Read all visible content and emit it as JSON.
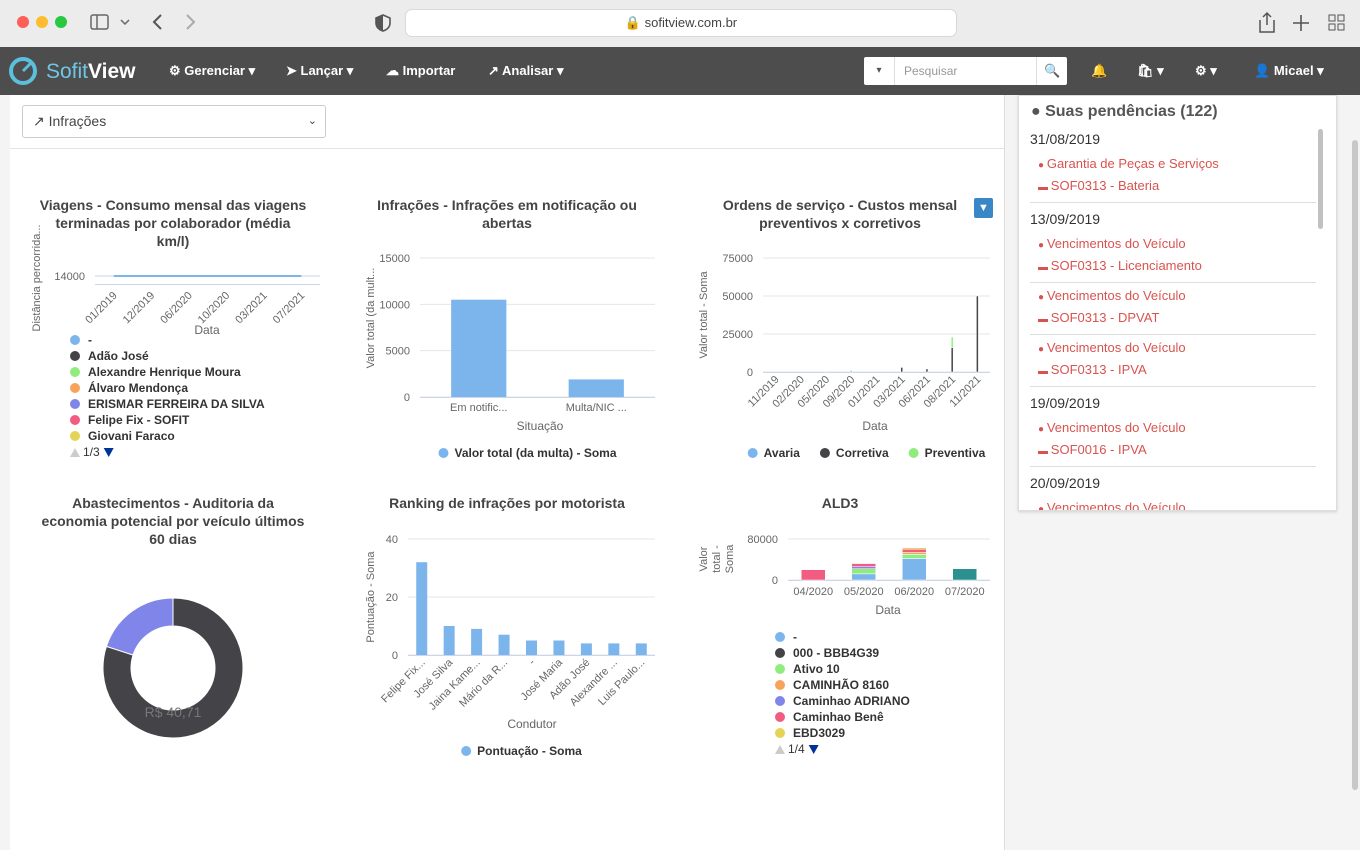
{
  "browser": {
    "url": "sofitview.com.br"
  },
  "nav": {
    "logo_a": "Sofit",
    "logo_b": "View",
    "menu": [
      "Gerenciar",
      "Lançar",
      "Importar",
      "Analisar"
    ],
    "search_placeholder": "Pesquisar",
    "user": "Micael"
  },
  "dashboard": {
    "selected": "Infrações"
  },
  "chart_data": [
    {
      "type": "line",
      "title": "Viagens - Consumo mensal das viagens terminadas por colaborador (média km/l)",
      "ylabel": "Distância percorrida...",
      "xlabel": "Data",
      "categories": [
        "01/2019",
        "12/2019",
        "06/2020",
        "10/2020",
        "03/2021",
        "07/2021"
      ],
      "ylim": [
        13000,
        15000
      ],
      "yticks": [
        14000
      ],
      "grid": true,
      "series": [
        {
          "name": "-",
          "color": "#7cb5ec",
          "values": [
            14000,
            14000,
            14000,
            14000,
            14000,
            14000
          ]
        },
        {
          "name": "Adão José",
          "color": "#434348"
        },
        {
          "name": "Alexandre Henrique Moura",
          "color": "#90ed7d"
        },
        {
          "name": "Álvaro Mendonça",
          "color": "#f7a35c"
        },
        {
          "name": "ERISMAR FERREIRA DA SILVA",
          "color": "#8085e9"
        },
        {
          "name": "Felipe Fix - SOFIT",
          "color": "#f15c80"
        },
        {
          "name": "Giovani Faraco",
          "color": "#e4d354"
        }
      ],
      "legend_page": "1/3"
    },
    {
      "type": "bar",
      "title": "Infrações - Infrações em notificação ou abertas",
      "ylabel": "Valor total (da mult...",
      "xlabel": "Situação",
      "categories": [
        "Em notific...",
        "Multa/NIC ..."
      ],
      "ylim": [
        0,
        15000
      ],
      "yticks": [
        0,
        5000,
        10000,
        15000
      ],
      "grid": true,
      "series": [
        {
          "name": "Valor total (da multa) - Soma",
          "color": "#7cb5ec",
          "values": [
            10500,
            1900
          ]
        }
      ]
    },
    {
      "type": "stacked_bar",
      "title": "Ordens de serviço - Custos mensal preventivos x corretivos",
      "ylabel": "Valor total - Soma",
      "xlabel": "Data",
      "categories": [
        "11/2019",
        "02/2020",
        "05/2020",
        "09/2020",
        "01/2021",
        "03/2021",
        "06/2021",
        "08/2021",
        "11/2021"
      ],
      "ylim": [
        0,
        75000
      ],
      "yticks": [
        0,
        25000,
        50000,
        75000
      ],
      "grid": true,
      "series": [
        {
          "name": "Avaria",
          "color": "#7cb5ec",
          "values": [
            0,
            0,
            500,
            1000,
            0,
            0,
            0,
            0,
            0
          ]
        },
        {
          "name": "Corretiva",
          "color": "#434348",
          "values": [
            0,
            0,
            0,
            0,
            0,
            3000,
            2000,
            16000,
            50000
          ]
        },
        {
          "name": "Preventiva",
          "color": "#90ed7d",
          "values": [
            0,
            0,
            0,
            0,
            0,
            0,
            0,
            7000,
            0
          ]
        }
      ]
    },
    {
      "type": "donut",
      "title": "Abastecimentos - Auditoria da economia potencial por veículo últimos 60 dias",
      "values": [
        80,
        20
      ],
      "colors": [
        "#434348",
        "#8085e9"
      ],
      "center_label": "R$ 40,71"
    },
    {
      "type": "bar",
      "title": "Ranking de infrações por motorista",
      "ylabel": "Pontuação - Soma",
      "xlabel": "Condutor",
      "categories": [
        "Felipe Fix...",
        "José Silva",
        "Jaina Kame...",
        "Mário da R...",
        "-",
        "José Maria",
        "Adão José",
        "Alexandre ...",
        "Luis Paulo..."
      ],
      "ylim": [
        0,
        40
      ],
      "yticks": [
        0,
        20,
        40
      ],
      "grid": true,
      "series": [
        {
          "name": "Pontuação - Soma",
          "color": "#7cb5ec",
          "values": [
            32,
            10,
            9,
            7,
            5,
            5,
            4,
            4,
            4
          ]
        }
      ]
    },
    {
      "type": "stacked_bar",
      "title": "ALD3",
      "ylabel": "Valor total - Soma",
      "xlabel": "Data",
      "categories": [
        "04/2020",
        "05/2020",
        "06/2020",
        "07/2020"
      ],
      "ylim": [
        0,
        80000
      ],
      "yticks": [
        0,
        80000
      ],
      "grid": true,
      "series": [
        {
          "name": "-",
          "color": "#7cb5ec",
          "values": [
            0,
            12000,
            42000,
            0
          ]
        },
        {
          "name": "000 - BBB4G39",
          "color": "#434348",
          "values": [
            0,
            0,
            0,
            0
          ]
        },
        {
          "name": "Ativo 10",
          "color": "#90ed7d",
          "values": [
            0,
            10000,
            8000,
            0
          ]
        },
        {
          "name": "CAMINHÃO 8160",
          "color": "#f7a35c",
          "values": [
            0,
            0,
            4000,
            0
          ]
        },
        {
          "name": "Caminhao ADRIANO",
          "color": "#8085e9",
          "values": [
            0,
            4000,
            0,
            0
          ]
        },
        {
          "name": "Caminhao Benê",
          "color": "#f15c80",
          "values": [
            20000,
            6000,
            6000,
            0
          ]
        },
        {
          "name": "EBD3029",
          "color": "#e4d354",
          "values": [
            0,
            0,
            3000,
            0
          ]
        },
        {
          "color": "#2b908f",
          "values": [
            0,
            0,
            0,
            22000
          ]
        }
      ],
      "legend_page": "1/4"
    }
  ],
  "pendencias": {
    "title": "Suas pendências (122)",
    "groups": [
      {
        "date": "31/08/2019",
        "items": [
          {
            "type": "Garantia de Peças e Serviços",
            "vehicle": "SOF0313 - Bateria"
          }
        ]
      },
      {
        "date": "13/09/2019",
        "items": [
          {
            "type": "Vencimentos do Veículo",
            "vehicle": "SOF0313 - Licenciamento"
          },
          {
            "type": "Vencimentos do Veículo",
            "vehicle": "SOF0313 - DPVAT"
          },
          {
            "type": "Vencimentos do Veículo",
            "vehicle": "SOF0313 - IPVA"
          }
        ]
      },
      {
        "date": "19/09/2019",
        "items": [
          {
            "type": "Vencimentos do Veículo",
            "vehicle": "SOF0016 - IPVA"
          }
        ]
      },
      {
        "date": "20/09/2019",
        "items": [
          {
            "type": "Vencimentos do Veículo"
          }
        ]
      }
    ]
  }
}
